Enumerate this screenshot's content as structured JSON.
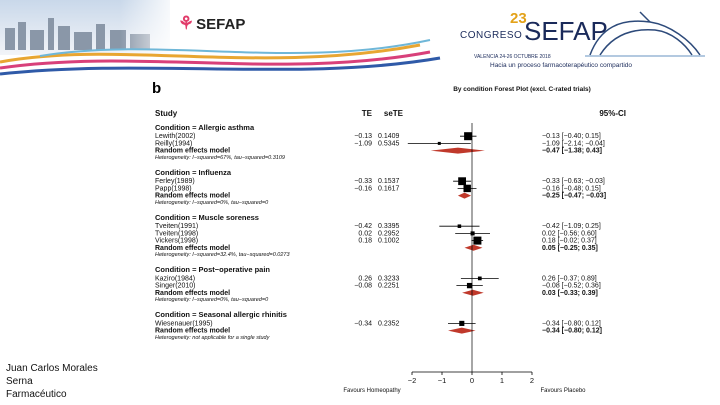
{
  "header": {
    "sefap_logo": "SEFAP",
    "congress_number": "23",
    "congress_word": "CONGRESO",
    "congress_brand": "SEFAP",
    "congress_place": "VALENCIA 24-26 OCTUBRE 2018",
    "tagline": "Hacia un proceso farmacoterapéutico compartido"
  },
  "panel_letter": "b",
  "chart_data": {
    "type": "forest",
    "title": "By condition Forest Plot (excl. C-rated trials)",
    "columns": {
      "study": "Study",
      "te": "TE",
      "sete": "seTE",
      "ci": "95%-CI"
    },
    "x_axis": {
      "min": -2,
      "max": 2,
      "ticks": [
        "−2",
        "−1",
        "0",
        "1",
        "2"
      ],
      "left_label": "Favours Homeopathy",
      "right_label": "Favours Placebo"
    },
    "groups": [
      {
        "header": "Condition = Allergic asthma",
        "studies": [
          {
            "name": "Lewith(2002)",
            "te": -0.13,
            "sete": "0.1409",
            "te_text": "−0.13",
            "ci_text": "−0.13   [−0.40;  0.15]",
            "lo": -0.4,
            "hi": 0.15
          },
          {
            "name": "Reilly(1994)",
            "te": -1.09,
            "sete": "0.5345",
            "te_text": "−1.09",
            "ci_text": "−1.09   [−2.14; −0.04]",
            "lo": -2.14,
            "hi": -0.04
          }
        ],
        "random": {
          "label": "Random effects model",
          "te": -0.47,
          "lo": -1.38,
          "hi": 0.43,
          "ci_text": "−0.47   [−1.38;  0.43]"
        },
        "heterogeneity": "Heterogeneity: I−squared=67%, tau−squared=0.3109"
      },
      {
        "header": "Condition = Influenza",
        "studies": [
          {
            "name": "Ferley(1989)",
            "te": -0.33,
            "sete": "0.1537",
            "te_text": "−0.33",
            "ci_text": "−0.33   [−0.63; −0.03]",
            "lo": -0.63,
            "hi": -0.03
          },
          {
            "name": "Papp(1998)",
            "te": -0.16,
            "sete": "0.1617",
            "te_text": "−0.16",
            "ci_text": "−0.16   [−0.48;  0.15]",
            "lo": -0.48,
            "hi": 0.15
          }
        ],
        "random": {
          "label": "Random effects model",
          "te": -0.25,
          "lo": -0.47,
          "hi": -0.03,
          "ci_text": "−0.25   [−0.47; −0.03]"
        },
        "heterogeneity": "Heterogeneity: I−squared=0%, tau−squared=0"
      },
      {
        "header": "Condition = Muscle soreness",
        "studies": [
          {
            "name": "Tveiten(1991)",
            "te": -0.42,
            "sete": "0.3395",
            "te_text": "−0.42",
            "ci_text": "−0.42   [−1.09;  0.25]",
            "lo": -1.09,
            "hi": 0.25
          },
          {
            "name": "Tveiten(1998)",
            "te": 0.02,
            "sete": "0.2952",
            "te_text": "0.02",
            "ci_text": "0.02   [−0.56;  0.60]",
            "lo": -0.56,
            "hi": 0.6
          },
          {
            "name": "Vickers(1998)",
            "te": 0.18,
            "sete": "0.1002",
            "te_text": "0.18",
            "ci_text": "0.18   [−0.02;  0.37]",
            "lo": -0.02,
            "hi": 0.37
          }
        ],
        "random": {
          "label": "Random effects model",
          "te": 0.05,
          "lo": -0.25,
          "hi": 0.35,
          "ci_text": "0.05   [−0.25;  0.35]"
        },
        "heterogeneity": "Heterogeneity: I−squared=32.4%, tau−squared=0.0273"
      },
      {
        "header": "Condition = Post−operative pain",
        "studies": [
          {
            "name": "Kaziro(1984)",
            "te": 0.26,
            "sete": "0.3233",
            "te_text": "0.26",
            "ci_text": "0.26   [−0.37;  0.89]",
            "lo": -0.37,
            "hi": 0.89
          },
          {
            "name": "Singer(2010)",
            "te": -0.08,
            "sete": "0.2251",
            "te_text": "−0.08",
            "ci_text": "−0.08   [−0.52;  0.36]",
            "lo": -0.52,
            "hi": 0.36
          }
        ],
        "random": {
          "label": "Random effects model",
          "te": 0.03,
          "lo": -0.33,
          "hi": 0.39,
          "ci_text": "0.03   [−0.33;  0.39]"
        },
        "heterogeneity": "Heterogeneity: I−squared=0%, tau−squared=0"
      },
      {
        "header": "Condition = Seasonal allergic rhinitis",
        "studies": [
          {
            "name": "Wiesenauer(1995)",
            "te": -0.34,
            "sete": "0.2352",
            "te_text": "−0.34",
            "ci_text": "−0.34   [−0.80;  0.12]",
            "lo": -0.8,
            "hi": 0.12
          }
        ],
        "random": {
          "label": "Random effects model",
          "te": -0.34,
          "lo": -0.8,
          "hi": 0.12,
          "ci_text": "−0.34   [−0.80;  0.12]"
        },
        "heterogeneity": "Heterogeneity: not applicable for a single study"
      }
    ]
  },
  "author": {
    "line1": "Juan Carlos Morales",
    "line2": "Serna",
    "line3": "Farmacéutico"
  }
}
